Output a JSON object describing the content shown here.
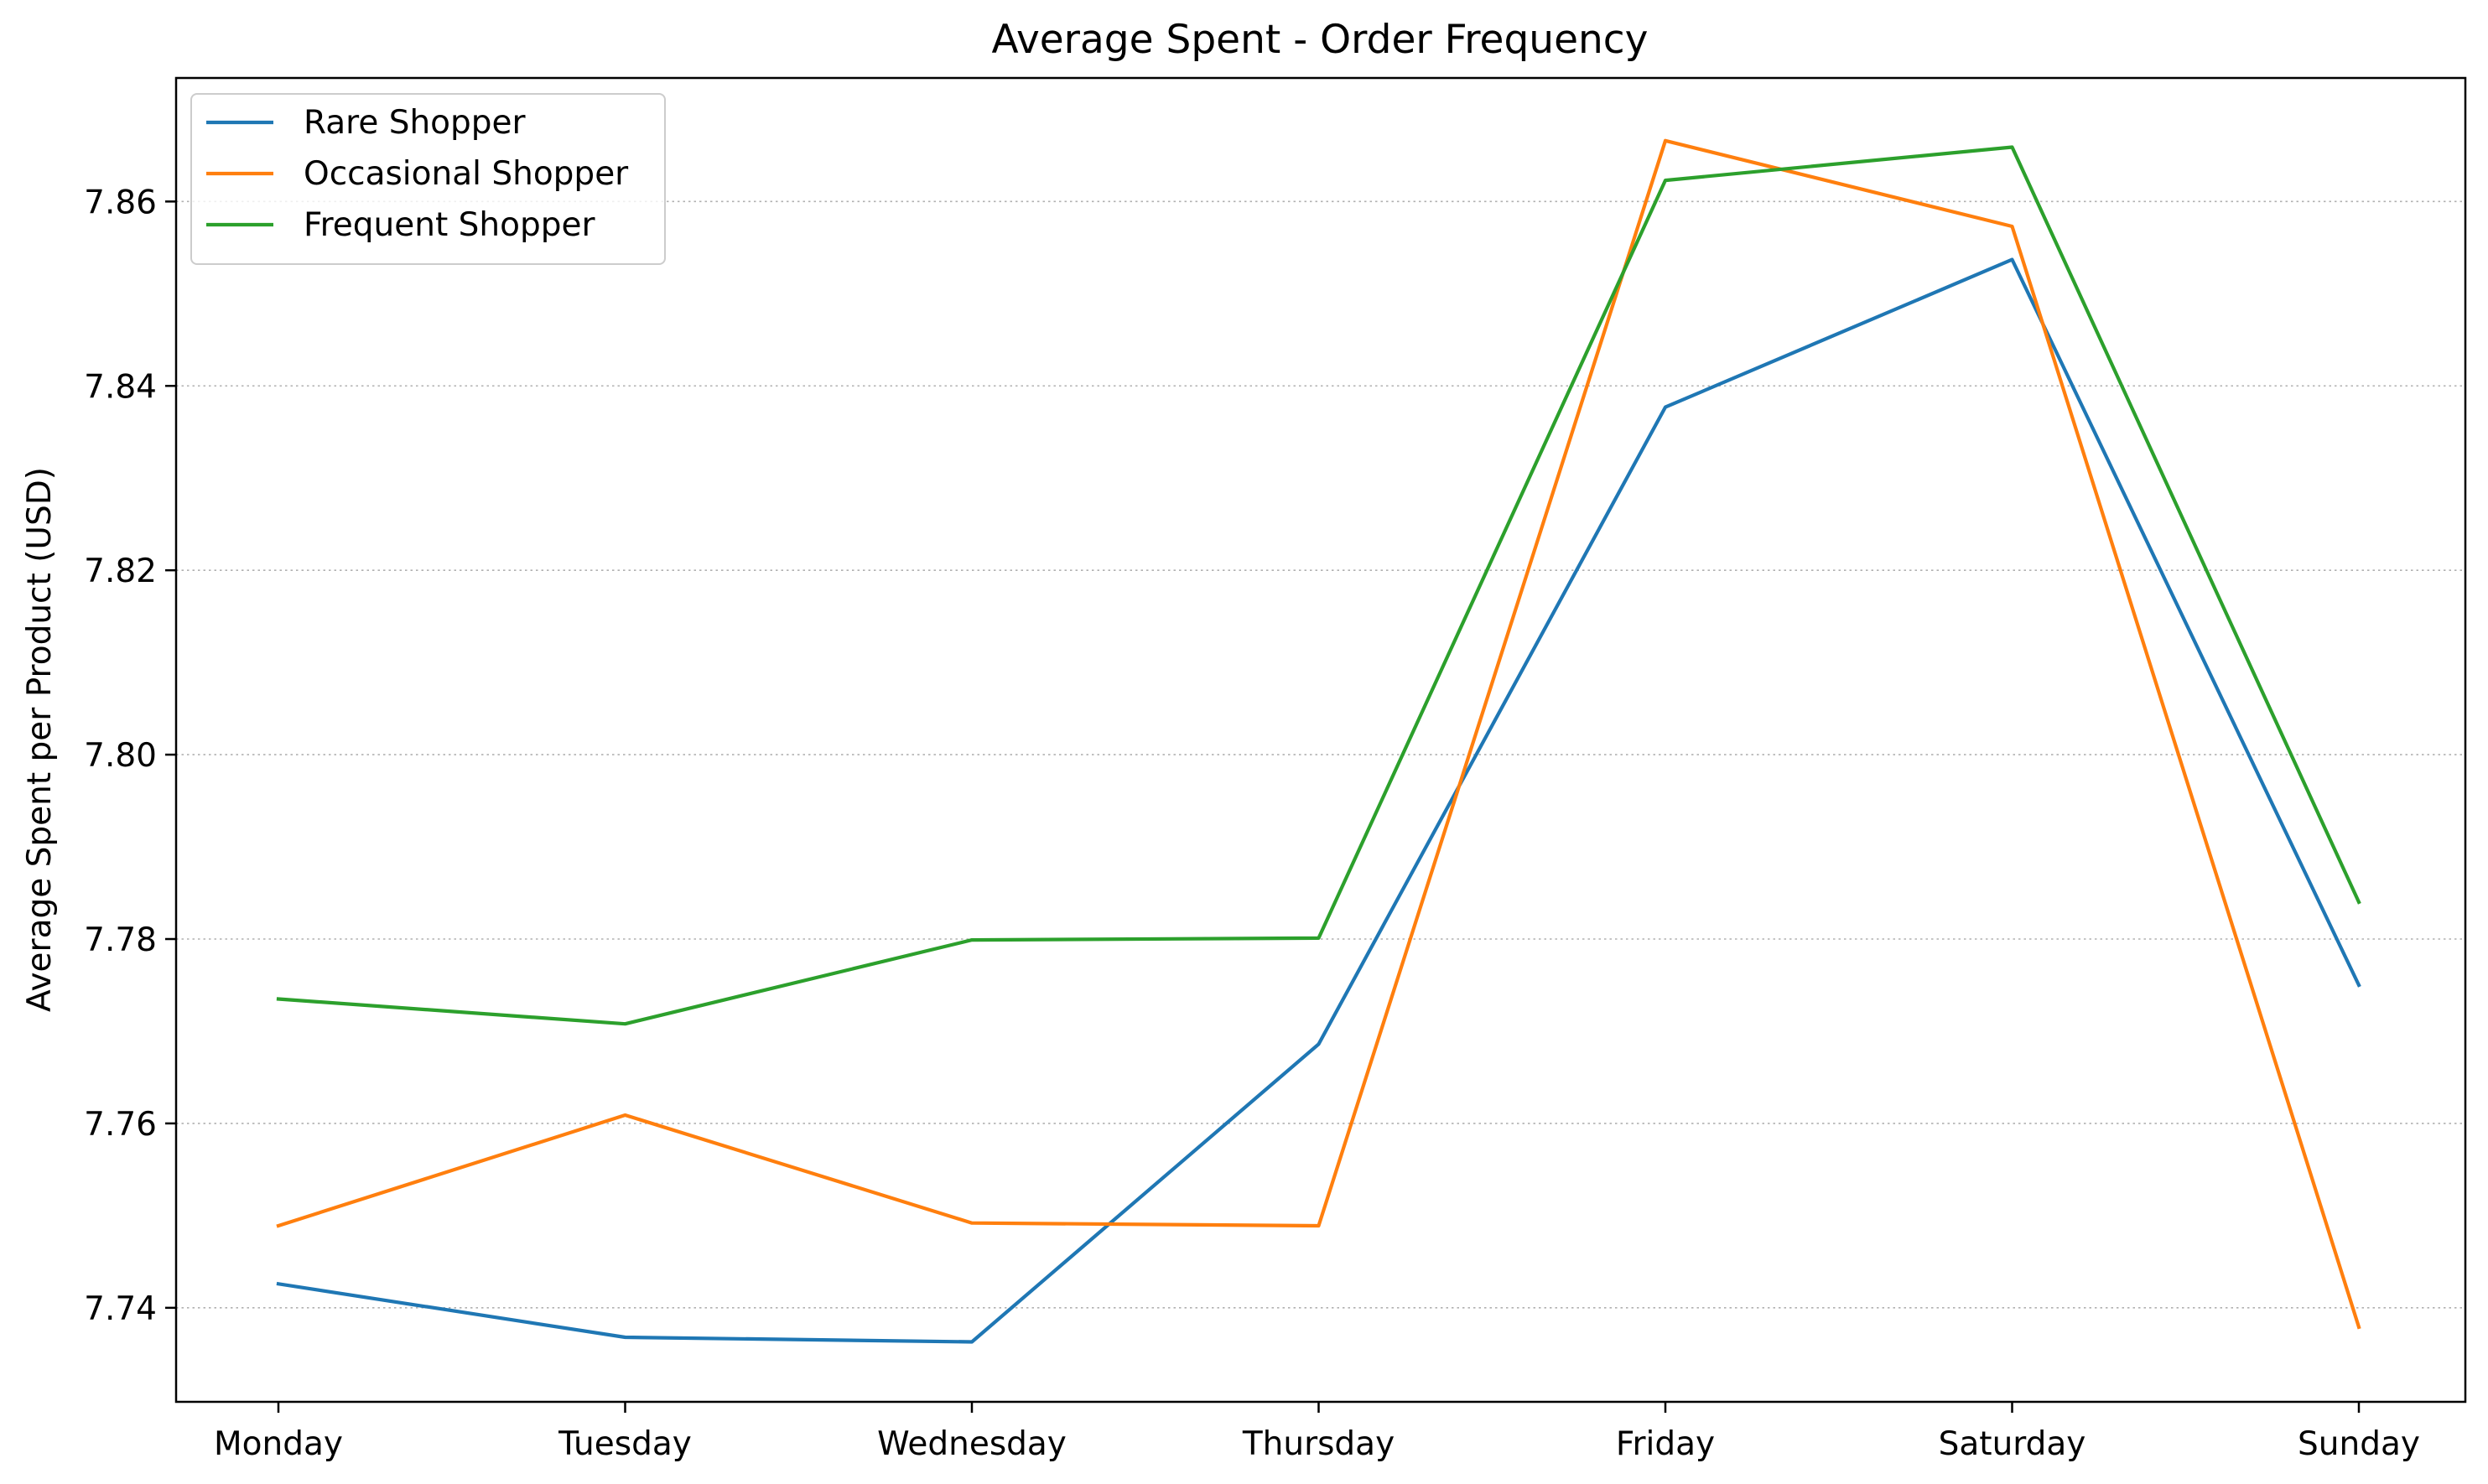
{
  "chart_data": {
    "type": "line",
    "title": "Average Spent - Order Frequency",
    "xlabel": "",
    "ylabel": "Average Spent per Product (USD)",
    "categories": [
      "Monday",
      "Tuesday",
      "Wednesday",
      "Thursday",
      "Friday",
      "Saturday",
      "Sunday"
    ],
    "ylim": [
      7.7298,
      7.8734
    ],
    "yticks": [
      "7.74",
      "7.76",
      "7.78",
      "7.80",
      "7.82",
      "7.84",
      "7.86"
    ],
    "ytick_values": [
      7.74,
      7.76,
      7.78,
      7.8,
      7.82,
      7.84,
      7.86
    ],
    "grid": "y-dotted",
    "legend_position": "top-left",
    "series": [
      {
        "name": "Rare Shopper",
        "color": "#1f77b4",
        "values": [
          7.7426,
          7.7368,
          7.7363,
          7.7686,
          7.8377,
          7.8537,
          7.775
        ]
      },
      {
        "name": "Occasional Shopper",
        "color": "#ff7f0e",
        "values": [
          7.7489,
          7.7609,
          7.7492,
          7.7489,
          7.8666,
          7.8573,
          7.7379
        ]
      },
      {
        "name": "Frequent Shopper",
        "color": "#2ca02c",
        "values": [
          7.7735,
          7.7708,
          7.7799,
          7.7801,
          7.8623,
          7.8659,
          7.784
        ]
      }
    ]
  }
}
